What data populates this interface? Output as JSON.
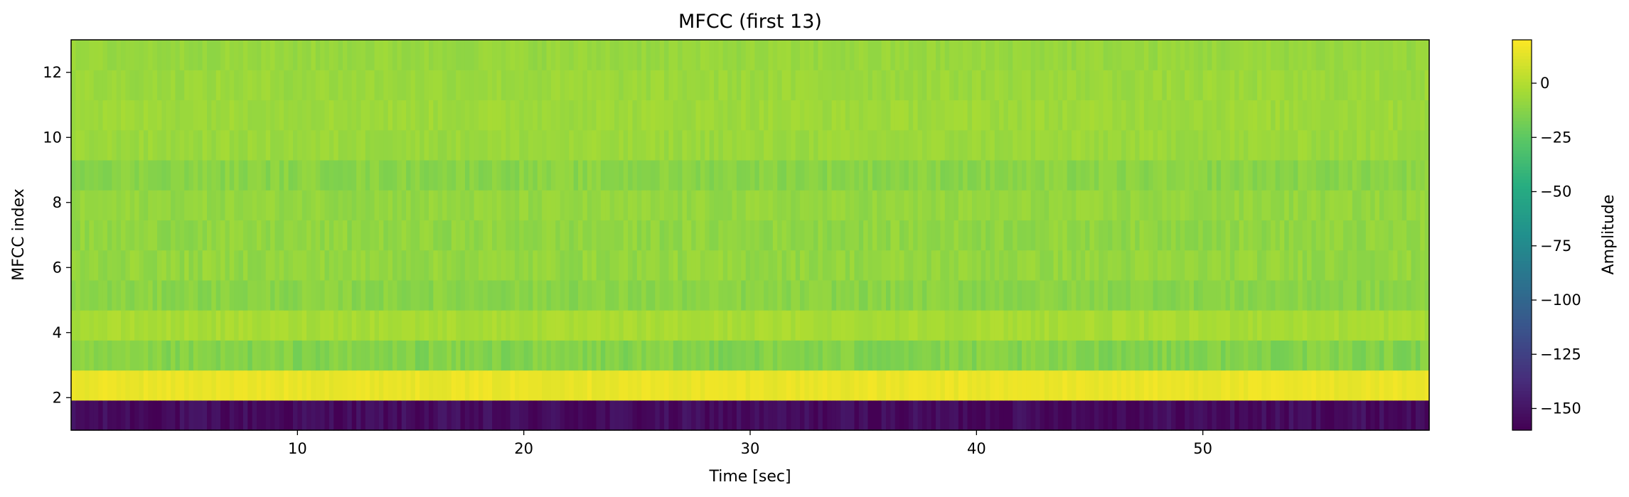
{
  "chart_data": {
    "type": "heatmap",
    "title": "MFCC (first 13)",
    "xlabel": "Time [sec]",
    "ylabel": "MFCC index",
    "xlim": [
      0,
      60
    ],
    "ylim": [
      1,
      13
    ],
    "x_ticks": [
      10,
      20,
      30,
      40,
      50
    ],
    "y_ticks": [
      2,
      4,
      6,
      8,
      10,
      12
    ],
    "grid": false,
    "colormap": "viridis",
    "colorbar": {
      "label": "Amplitude",
      "range": [
        -160,
        20
      ],
      "ticks": [
        0,
        -25,
        -50,
        -75,
        -100,
        -125,
        -150
      ]
    },
    "rows": [
      {
        "index": 1,
        "mean": -155,
        "variation": 7
      },
      {
        "index": 2,
        "mean": 15,
        "variation": 2.5
      },
      {
        "index": 3,
        "mean": -14,
        "variation": 5
      },
      {
        "index": 4,
        "mean": -3,
        "variation": 3
      },
      {
        "index": 5,
        "mean": -12,
        "variation": 4
      },
      {
        "index": 6,
        "mean": -9,
        "variation": 4
      },
      {
        "index": 7,
        "mean": -10,
        "variation": 4
      },
      {
        "index": 8,
        "mean": -9,
        "variation": 3.5
      },
      {
        "index": 9,
        "mean": -12,
        "variation": 4
      },
      {
        "index": 10,
        "mean": -7,
        "variation": 3
      },
      {
        "index": 11,
        "mean": -6,
        "variation": 3
      },
      {
        "index": 12,
        "mean": -7,
        "variation": 3
      },
      {
        "index": 13,
        "mean": -8,
        "variation": 3
      }
    ]
  }
}
